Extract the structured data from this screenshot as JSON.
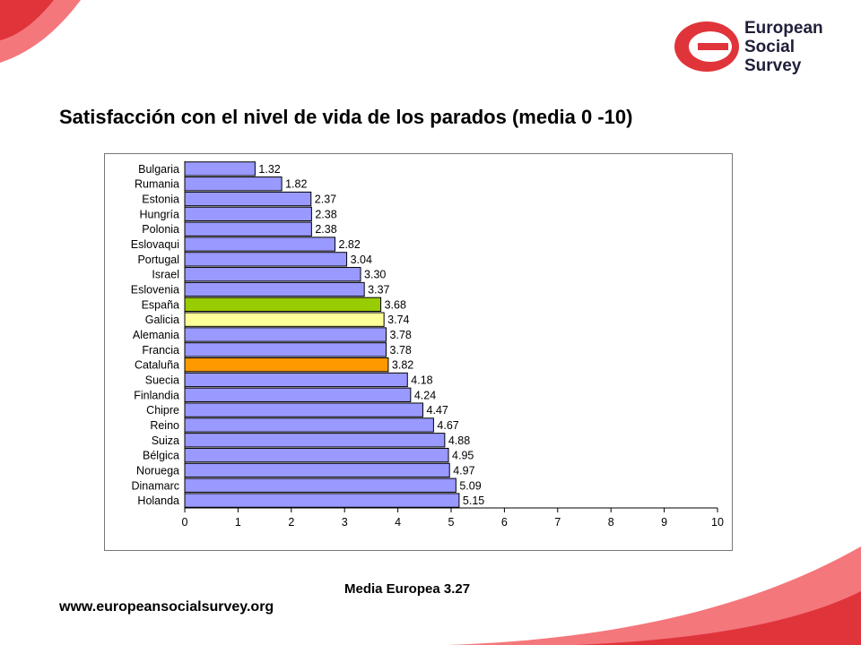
{
  "logo": {
    "line1": "European",
    "line2": "Social",
    "line3": "Survey"
  },
  "header": {
    "title": "Satisfacción con el nivel de vida de los parados (media 0 -10)"
  },
  "colors": {
    "accent": "#e0343b",
    "default_bar": "#9999ff",
    "galicia_bar": "#ffff99",
    "espana_bar": "#99cc00",
    "cataluna_bar": "#ff9900"
  },
  "chart_data": {
    "type": "bar",
    "orientation": "horizontal",
    "categories": [
      "Bulgaria",
      "Rumania",
      "Estonia",
      "Hungría",
      "Polonia",
      "Eslovaqui",
      "Portugal",
      "Israel",
      "Eslovenia",
      "España",
      "Galicia",
      "Alemania",
      "Francia",
      "Cataluña",
      "Suecia",
      "Finlandia",
      "Chipre",
      "Reino",
      "Suiza",
      "Bélgica",
      "Noruega",
      "Dinamarc",
      "Holanda"
    ],
    "values": [
      1.32,
      1.82,
      2.37,
      2.38,
      2.38,
      2.82,
      3.04,
      3.3,
      3.37,
      3.68,
      3.74,
      3.78,
      3.78,
      3.82,
      4.18,
      4.24,
      4.47,
      4.67,
      4.88,
      4.95,
      4.97,
      5.09,
      5.15
    ],
    "value_labels": [
      "1.32",
      "1.82",
      "2.37",
      "2.38",
      "2.38",
      "2.82",
      "3.04",
      "3.30",
      "3.37",
      "3.68",
      "3.74",
      "3.78",
      "3.78",
      "3.82",
      "4.18",
      "4.24",
      "4.47",
      "4.67",
      "4.88",
      "4.95",
      "4.97",
      "5.09",
      "5.15"
    ],
    "highlight": {
      "España": "#99cc00",
      "Galicia": "#ffff99",
      "Cataluña": "#ff9900"
    },
    "xlim": [
      0,
      10
    ],
    "xticks": [
      "0",
      "1",
      "2",
      "3",
      "4",
      "5",
      "6",
      "7",
      "8",
      "9",
      "10"
    ],
    "grid": false,
    "title": "Satisfacción con el nivel de vida de los parados (media 0 -10)"
  },
  "footer": {
    "note": "Media Europea 3.27",
    "website": "www.europeansocialsurvey.org"
  }
}
